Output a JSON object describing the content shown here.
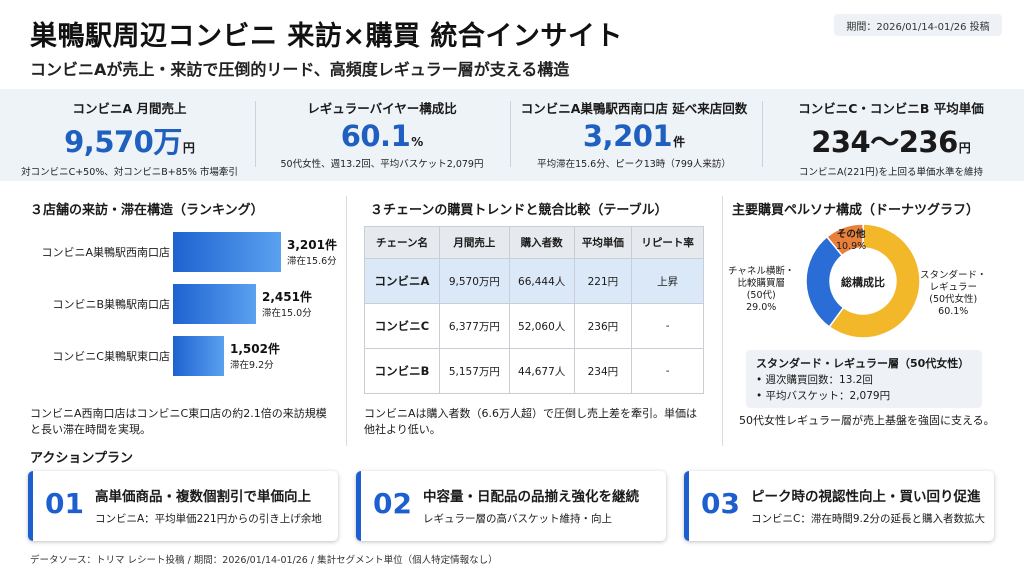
{
  "header": {
    "title": "巣鴨駅周辺コンビニ 来訪×購買 統合インサイト",
    "subtitle": "コンビニAが売上・来訪で圧倒的リード、高頻度レギュラー層が支える構造",
    "period_badge": "期間：2026/01/14-01/26 投稿"
  },
  "kpis": [
    {
      "label": "コンビニA 月間売上",
      "value": "9,570万",
      "unit": "円",
      "note": "対コンビニC+50%、対コンビニB+85% 市場牽引"
    },
    {
      "label": "レギュラーバイヤー構成比",
      "value": "60.1",
      "unit": "%",
      "note": "50代女性、週13.2回、平均バスケット2,079円"
    },
    {
      "label": "コンビニA巣鴨駅西南口店 延べ来店回数",
      "value": "3,201",
      "unit": "件",
      "note": "平均滞在15.6分、ピーク13時（799人来訪）"
    },
    {
      "label": "コンビニC・コンビニB 平均単価",
      "value": "234〜236",
      "unit": "円",
      "note": "コンビニA(221円)を上回る単価水準を維持"
    }
  ],
  "ranking": {
    "title": "３店舗の来訪・滞在構造（ランキング）",
    "items": [
      {
        "store": "コンビニA巣鴨駅西南口店",
        "visits": 3201,
        "count_label": "3,201件",
        "dwell_label": "滞在15.6分"
      },
      {
        "store": "コンビニB巣鴨駅南口店",
        "visits": 2451,
        "count_label": "2,451件",
        "dwell_label": "滞在15.0分"
      },
      {
        "store": "コンビニC巣鴨駅東口店",
        "visits": 1502,
        "count_label": "1,502件",
        "dwell_label": "滞在9.2分"
      }
    ],
    "note": "コンビニA西南口店はコンビニC東口店の約2.1倍の来訪規模と長い滞在時間を実現。"
  },
  "trend_table": {
    "title": "３チェーンの購買トレンドと競合比較（テーブル）",
    "headers": [
      "チェーン名",
      "月間売上",
      "購入者数",
      "平均単価",
      "リピート率"
    ],
    "rows": [
      [
        "コンビニA",
        "9,570万円",
        "66,444人",
        "221円",
        "上昇"
      ],
      [
        "コンビニC",
        "6,377万円",
        "52,060人",
        "236円",
        "-"
      ],
      [
        "コンビニB",
        "5,157万円",
        "44,677人",
        "234円",
        "-"
      ]
    ],
    "note": "コンビニAは購入者数（6.6万人超）で圧倒し売上差を牽引。単価は他社より低い。"
  },
  "persona": {
    "title": "主要購買ペルソナ構成（ドーナツグラフ）",
    "center_label": "総構成比",
    "segments": [
      {
        "name": "スタンダード・\nレギュラー\n(50代女性)",
        "share": 60.1,
        "share_label": "60.1%",
        "color": "#f2b82a"
      },
      {
        "name": "チャネル横断・\n比較購買層\n(50代)",
        "share": 29.0,
        "share_label": "29.0%",
        "color": "#2a6dd6"
      },
      {
        "name": "その他",
        "share": 10.9,
        "share_label": "10.9%",
        "color": "#e8803a"
      }
    ],
    "box_title": "スタンダード・レギュラー層（50代女性）",
    "box_items": [
      "• 週次購買回数：13.2回",
      "• 平均バスケット：2,079円"
    ],
    "note": "50代女性レギュラー層が売上基盤を強固に支える。"
  },
  "actions": {
    "heading": "アクションプラン",
    "items": [
      {
        "num": "01",
        "title": "高単価商品・複数個割引で単価向上",
        "desc": "コンビニA：平均単価221円からの引き上げ余地"
      },
      {
        "num": "02",
        "title": "中容量・日配品の品揃え強化を継続",
        "desc": "レギュラー層の高バスケット維持・向上"
      },
      {
        "num": "03",
        "title": "ピーク時の視認性向上・買い回り促進",
        "desc": "コンビニC：滞在時間9.2分の延長と購入者数拡大"
      }
    ]
  },
  "footer": "データソース：トリマ レシート投稿 / 期間：2026/01/14-01/26 / 集計セグメント単位（個人特定情報なし）"
}
